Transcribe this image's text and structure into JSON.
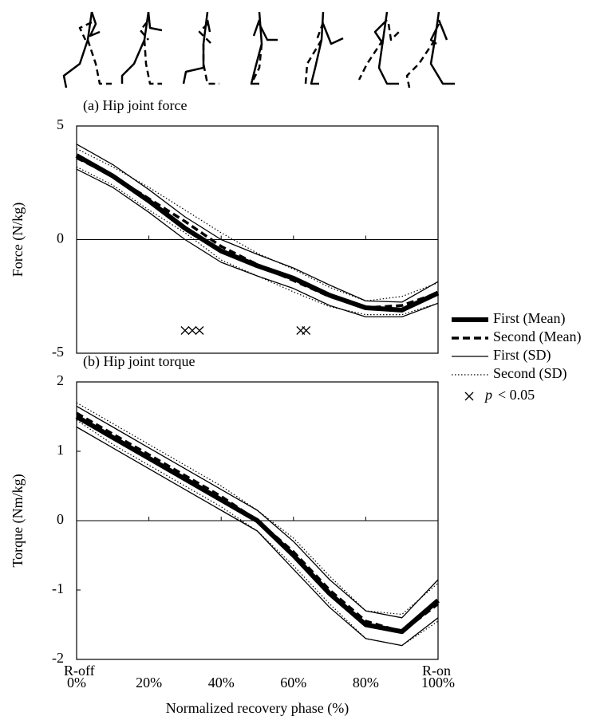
{
  "chart_data": [
    {
      "type": "line",
      "title": "(a) Hip joint force",
      "ylabel": "Force (N/kg)",
      "x": [
        0,
        10,
        20,
        30,
        40,
        50,
        60,
        70,
        80,
        90,
        100
      ],
      "xlim": [
        0,
        100
      ],
      "ylim": [
        -5,
        5
      ],
      "yticks": [
        -5,
        0,
        5
      ],
      "series": [
        {
          "name": "First (Mean)",
          "color": "#000000",
          "values": [
            3.7,
            2.8,
            1.7,
            0.5,
            -0.5,
            -1.15,
            -1.7,
            -2.45,
            -3.0,
            -3.1,
            -2.35
          ]
        },
        {
          "name": "Second (Mean)",
          "color": "#000000",
          "values": [
            3.6,
            2.8,
            1.8,
            0.8,
            -0.3,
            -1.1,
            -1.8,
            -2.5,
            -3.0,
            -2.9,
            -2.35
          ]
        },
        {
          "name": "First (SD)",
          "color": "#000000",
          "upper": [
            4.2,
            3.3,
            2.2,
            1.0,
            0.0,
            -0.65,
            -1.25,
            -2.0,
            -2.7,
            -2.75,
            -1.85
          ],
          "lower": [
            3.1,
            2.3,
            1.2,
            0.0,
            -1.0,
            -1.6,
            -2.15,
            -2.9,
            -3.4,
            -3.4,
            -2.8
          ]
        },
        {
          "name": "Second (SD)",
          "color": "#000000",
          "upper": [
            4.0,
            3.2,
            2.3,
            1.3,
            0.3,
            -0.6,
            -1.3,
            -2.1,
            -2.7,
            -2.5,
            -1.9
          ],
          "lower": [
            3.2,
            2.4,
            1.3,
            0.3,
            -0.9,
            -1.6,
            -2.3,
            -2.95,
            -3.3,
            -3.3,
            -2.8
          ]
        }
      ],
      "significance": {
        "label": [
          "p",
          "< 0.05"
        ],
        "x": [
          30,
          32,
          34,
          62,
          63.5
        ],
        "y": [
          -4,
          -4,
          -4,
          -4,
          -4
        ]
      }
    },
    {
      "type": "line",
      "title": "(b) Hip joint torque",
      "ylabel": "Torque (Nm/kg)",
      "xlabel": "Normalized recovery phase (%)",
      "x": [
        0,
        10,
        20,
        30,
        40,
        50,
        60,
        70,
        80,
        90,
        100
      ],
      "xlim": [
        0,
        100
      ],
      "xticks": [
        {
          "value": 0,
          "label": "0%"
        },
        {
          "value": 20,
          "label": "20%"
        },
        {
          "value": 40,
          "label": "40%"
        },
        {
          "value": 60,
          "label": "60%"
        },
        {
          "value": 80,
          "label": "80%"
        },
        {
          "value": 100,
          "label": "100%"
        }
      ],
      "ylim": [
        -2,
        2
      ],
      "yticks": [
        -2,
        -1,
        0,
        1,
        2
      ],
      "annotations": [
        "R-off",
        "R-on"
      ],
      "series": [
        {
          "color": "#000000",
          "values": [
            1.5,
            1.2,
            0.9,
            0.6,
            0.3,
            0.0,
            -0.5,
            -1.05,
            -1.5,
            -1.6,
            -1.15
          ]
        },
        {
          "color": "#000000",
          "values": [
            1.55,
            1.25,
            0.95,
            0.65,
            0.35,
            0.0,
            -0.45,
            -1.0,
            -1.45,
            -1.6,
            -1.2
          ]
        },
        {
          "color": "#000000",
          "upper": [
            1.65,
            1.35,
            1.05,
            0.75,
            0.45,
            0.15,
            -0.3,
            -0.85,
            -1.3,
            -1.4,
            -0.85
          ],
          "lower": [
            1.35,
            1.05,
            0.75,
            0.45,
            0.15,
            -0.15,
            -0.7,
            -1.25,
            -1.7,
            -1.8,
            -1.4
          ]
        },
        {
          "color": "#000000",
          "upper": [
            1.7,
            1.4,
            1.1,
            0.8,
            0.5,
            0.15,
            -0.25,
            -0.8,
            -1.3,
            -1.35,
            -0.9
          ],
          "lower": [
            1.45,
            1.1,
            0.8,
            0.5,
            0.2,
            -0.15,
            -0.65,
            -1.2,
            -1.7,
            -1.8,
            -1.45
          ]
        }
      ]
    }
  ]
}
